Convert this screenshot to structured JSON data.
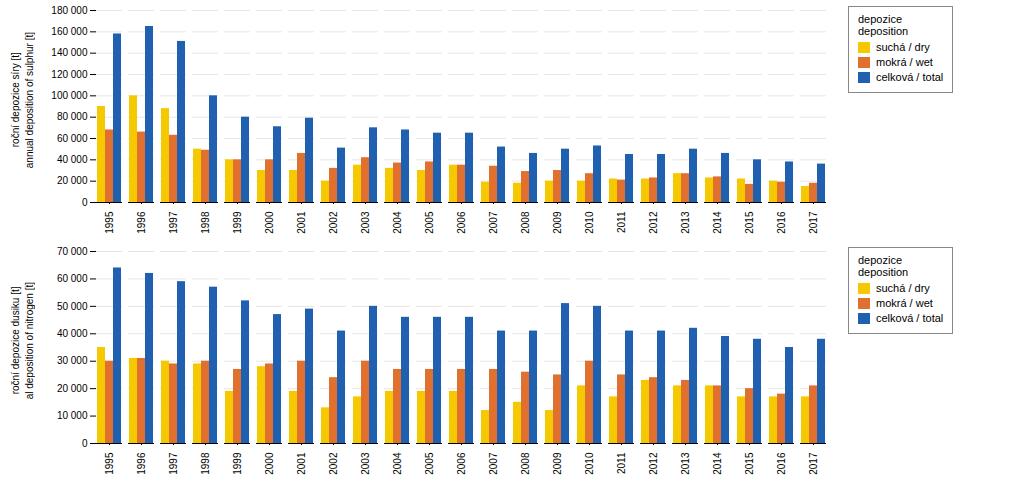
{
  "chart_data": [
    {
      "type": "bar",
      "ylabel": "roční depozice síry [t]\nannual deposition of sulphur [t]",
      "categories": [
        "1995",
        "1996",
        "1997",
        "1998",
        "1999",
        "2000",
        "2001",
        "2002",
        "2003",
        "2004",
        "2005",
        "2006",
        "2007",
        "2008",
        "2009",
        "2010",
        "2011",
        "2012",
        "2013",
        "2014",
        "2015",
        "2016",
        "2017"
      ],
      "series": [
        {
          "name": "suchá / dry",
          "color": "#f5c800",
          "values": [
            90000,
            100000,
            88000,
            50000,
            40000,
            30000,
            30000,
            20000,
            35000,
            32000,
            30000,
            35000,
            19000,
            18000,
            20000,
            20000,
            22000,
            22000,
            27000,
            23000,
            22000,
            20000,
            15000
          ]
        },
        {
          "name": "mokrá / wet",
          "color": "#e07030",
          "values": [
            68000,
            66000,
            63000,
            49000,
            40000,
            40000,
            46000,
            32000,
            42000,
            37000,
            38000,
            35000,
            34000,
            29000,
            30000,
            27000,
            21000,
            23000,
            27000,
            24000,
            17000,
            19000,
            18000
          ]
        },
        {
          "name": "celková / total",
          "color": "#2060b0",
          "values": [
            158000,
            165000,
            151000,
            100000,
            80000,
            71000,
            79000,
            51000,
            70000,
            68000,
            65000,
            65000,
            52000,
            46000,
            50000,
            53000,
            45000,
            45000,
            50000,
            46000,
            40000,
            38000,
            36000
          ]
        }
      ],
      "ylim": [
        0,
        180000
      ],
      "yticks": [
        0,
        {
          "value": 20000,
          "label": "20 000"
        },
        {
          "value": 40000,
          "label": "40 000"
        },
        {
          "value": 60000,
          "label": "60 000"
        },
        {
          "value": 80000,
          "label": "80 000"
        },
        {
          "value": 100000,
          "label": "100 000"
        },
        {
          "value": 120000,
          "label": "120 000"
        },
        {
          "value": 140000,
          "label": "140 000"
        },
        {
          "value": 160000,
          "label": "160 000"
        },
        {
          "value": 180000,
          "label": "180 000"
        }
      ],
      "grid": true,
      "legend": "right",
      "legend_title": "depozice\ndeposition"
    },
    {
      "type": "bar",
      "ylabel": "roční depozice dusiku [t]\nal deposition of nitrogen [t]",
      "categories": [
        "1995",
        "1996",
        "1997",
        "1998",
        "1999",
        "2000",
        "2001",
        "2002",
        "2003",
        "2004",
        "2005",
        "2006",
        "2007",
        "2008",
        "2009",
        "2010",
        "2011",
        "2012",
        "2013",
        "2014",
        "2015",
        "2016",
        "2017"
      ],
      "series": [
        {
          "name": "suchá / dry",
          "color": "#f5c800",
          "values": [
            35000,
            31000,
            30000,
            29000,
            19000,
            28000,
            19000,
            13000,
            17000,
            19000,
            19000,
            19000,
            12000,
            15000,
            12000,
            21000,
            17000,
            23000,
            21000,
            21000,
            17000,
            17000,
            17000
          ]
        },
        {
          "name": "mokrá / wet",
          "color": "#e07030",
          "values": [
            30000,
            31000,
            29000,
            30000,
            27000,
            29000,
            30000,
            24000,
            30000,
            27000,
            27000,
            27000,
            27000,
            26000,
            25000,
            30000,
            25000,
            24000,
            23000,
            21000,
            20000,
            18000,
            21000
          ]
        },
        {
          "name": "celková / total",
          "color": "#2060b0",
          "values": [
            64000,
            62000,
            59000,
            57000,
            52000,
            47000,
            49000,
            41000,
            50000,
            46000,
            46000,
            46000,
            41000,
            41000,
            51000,
            50000,
            41000,
            41000,
            42000,
            39000,
            38000,
            35000,
            38000
          ]
        }
      ],
      "ylim": [
        0,
        70000
      ],
      "yticks": [
        0,
        {
          "value": 10000,
          "label": "10 000"
        },
        {
          "value": 20000,
          "label": "20 000"
        },
        {
          "value": 30000,
          "label": "30 000"
        },
        {
          "value": 40000,
          "label": "40 000"
        },
        {
          "value": 50000,
          "label": "50 000"
        },
        {
          "value": 60000,
          "label": "60 000"
        },
        {
          "value": 70000,
          "label": "70 000"
        }
      ],
      "grid": true,
      "legend": "right",
      "legend_title": "depozice\ndeposition"
    }
  ]
}
